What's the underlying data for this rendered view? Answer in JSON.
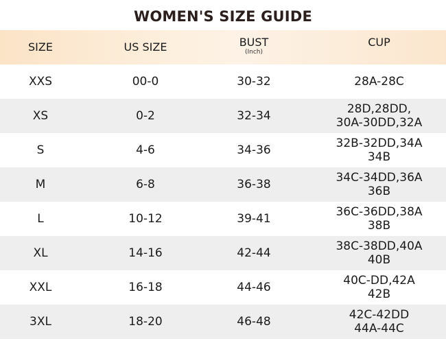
{
  "title": "WOMEN'S SIZE GUIDE",
  "headers": {
    "size": "SIZE",
    "us_size": "US SIZE",
    "bust": "BUST",
    "bust_unit": "(Inch)",
    "cup": "CUP"
  },
  "rows": [
    {
      "size": "XXS",
      "us": "00-0",
      "bust": "30-32",
      "cup": [
        "28A-28C"
      ]
    },
    {
      "size": "XS",
      "us": "0-2",
      "bust": "32-34",
      "cup": [
        "28D,28DD,",
        "30A-30DD,32A"
      ]
    },
    {
      "size": "S",
      "us": "4-6",
      "bust": "34-36",
      "cup": [
        "32B-32DD,34A",
        "34B"
      ]
    },
    {
      "size": "M",
      "us": "6-8",
      "bust": "36-38",
      "cup": [
        "34C-34DD,36A",
        "36B"
      ]
    },
    {
      "size": "L",
      "us": "10-12",
      "bust": "39-41",
      "cup": [
        "36C-36DD,38A",
        "38B"
      ]
    },
    {
      "size": "XL",
      "us": "14-16",
      "bust": "42-44",
      "cup": [
        "38C-38DD,40A",
        "40B"
      ]
    },
    {
      "size": "XXL",
      "us": "16-18",
      "bust": "44-46",
      "cup": [
        "40C-DD,42A",
        "42B"
      ]
    },
    {
      "size": "3XL",
      "us": "18-20",
      "bust": "46-48",
      "cup": [
        "42C-42DD",
        "44A-44C"
      ]
    }
  ]
}
